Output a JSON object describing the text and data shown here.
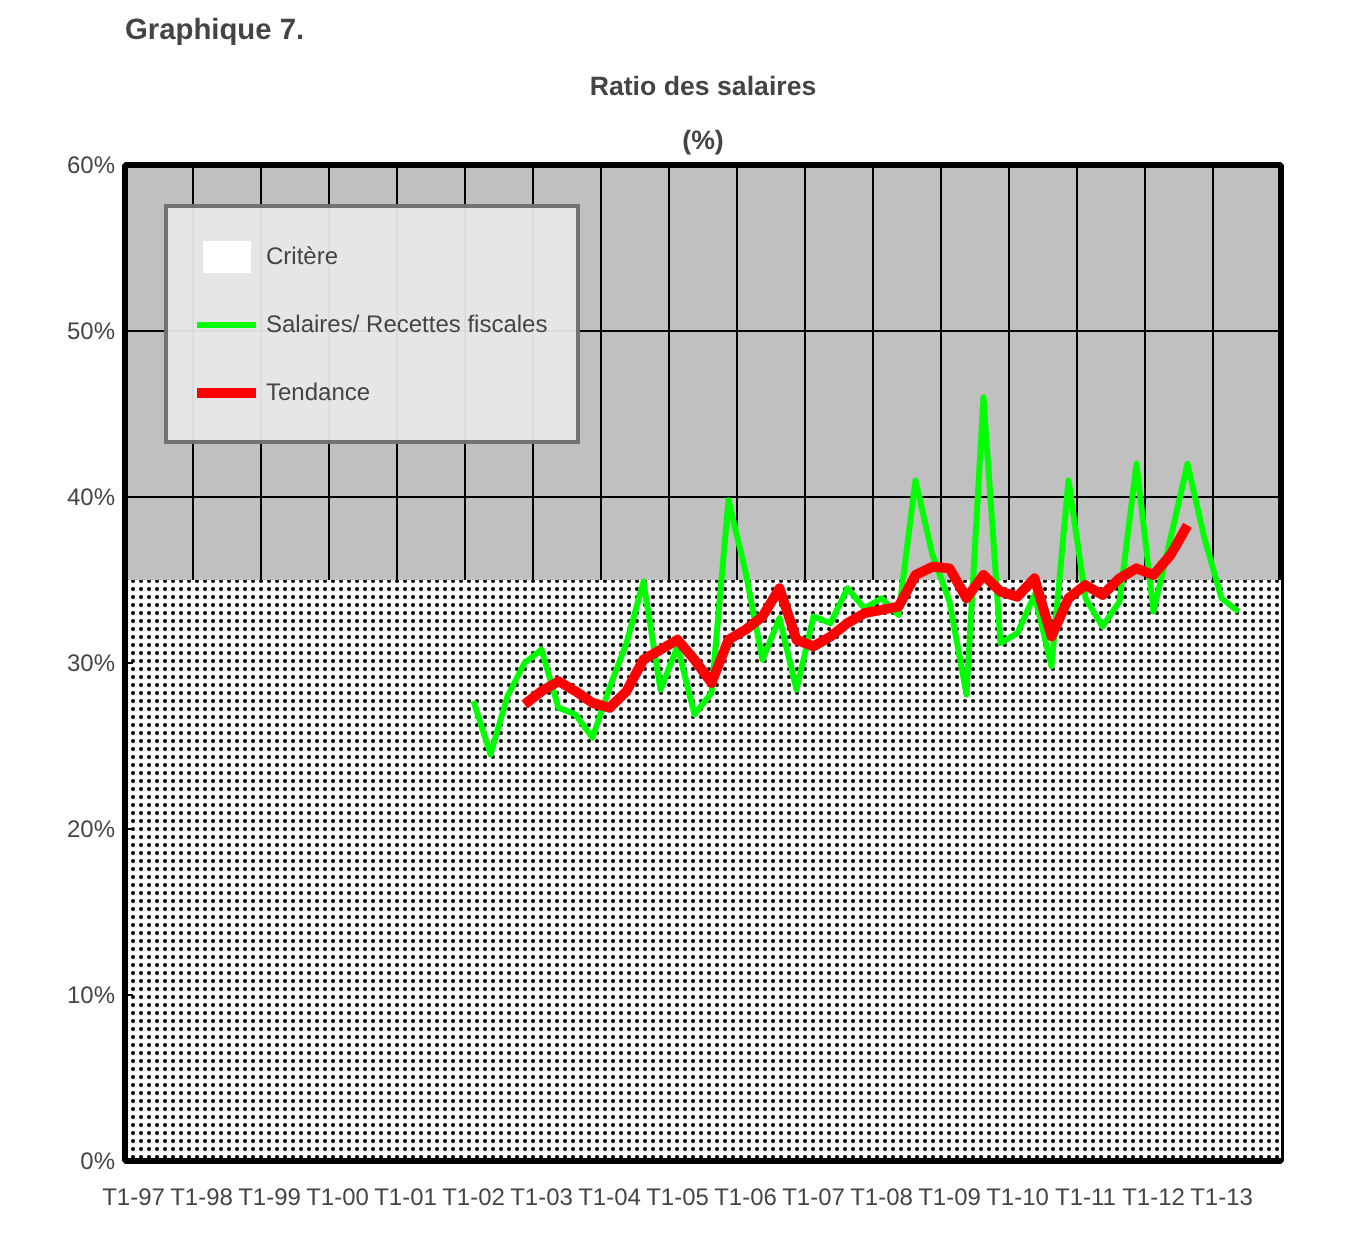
{
  "chart_data": {
    "type": "line",
    "title": "Ratio des salaires",
    "subtitle": "(%)",
    "annotations": [
      "Graphique 7."
    ],
    "categories": [
      "T1-97",
      null,
      null,
      null,
      "T1-98",
      null,
      null,
      null,
      "T1-99",
      null,
      null,
      null,
      "T1-00",
      null,
      null,
      null,
      "T1-01",
      null,
      null,
      null,
      "T1-02",
      null,
      null,
      null,
      "T1-03",
      null,
      null,
      null,
      "T1-04",
      null,
      null,
      null,
      "T1-05",
      null,
      null,
      null,
      "T1-06",
      null,
      null,
      null,
      "T1-07",
      null,
      null,
      null,
      "T1-08",
      null,
      null,
      null,
      "T1-09",
      null,
      null,
      null,
      "T1-10",
      null,
      null,
      null,
      "T1-11",
      null,
      null,
      null,
      "T1-12",
      null,
      null,
      null,
      "T1-13",
      null,
      null,
      null
    ],
    "series": [
      {
        "name": "Salaires/ Recettes fiscales",
        "color": "#00ff00",
        "values": [
          null,
          null,
          null,
          null,
          null,
          null,
          null,
          null,
          null,
          null,
          null,
          null,
          null,
          null,
          null,
          null,
          null,
          null,
          null,
          null,
          27.7,
          24.5,
          28,
          30,
          30.8,
          27.3,
          26.9,
          25.5,
          28.5,
          31.2,
          34.9,
          28.4,
          31,
          26.9,
          28.2,
          39.8,
          35.5,
          30.2,
          32.7,
          28.4,
          32.8,
          32.4,
          34.5,
          33.3,
          33.9,
          32.9,
          41,
          36.5,
          33.7,
          28.1,
          46,
          31.2,
          31.8,
          34.1,
          29.8,
          41,
          33.9,
          32.2,
          33.7,
          42,
          33.1,
          37.5,
          42,
          37.5,
          33.9,
          33.1,
          null,
          null
        ]
      },
      {
        "name": "Tendance",
        "color": "#ff0000",
        "values": [
          null,
          null,
          null,
          null,
          null,
          null,
          null,
          null,
          null,
          null,
          null,
          null,
          null,
          null,
          null,
          null,
          null,
          null,
          null,
          null,
          null,
          null,
          null,
          27.5,
          28.3,
          28.9,
          28.3,
          27.6,
          27.3,
          28.3,
          30.2,
          30.8,
          31.4,
          30.2,
          28.8,
          31.4,
          32,
          32.8,
          34.5,
          31.4,
          31,
          31.6,
          32.4,
          33,
          33.2,
          33.4,
          35.3,
          35.8,
          35.7,
          33.9,
          35.3,
          34.3,
          34,
          35.1,
          31.6,
          33.9,
          34.7,
          34.1,
          35.1,
          35.7,
          35.3,
          36.5,
          38.3,
          null,
          null,
          null,
          null,
          null
        ]
      }
    ],
    "bands": [
      {
        "axis": "y",
        "from": 0,
        "to": 35,
        "label": "Critère",
        "color": "#ffffff"
      }
    ],
    "ylim": [
      0,
      60
    ],
    "yticks": [
      {
        "value": 0,
        "label": "0%"
      },
      {
        "value": 10,
        "label": "10%"
      },
      {
        "value": 20,
        "label": "20%"
      },
      {
        "value": 30,
        "label": "30%"
      },
      {
        "value": 40,
        "label": "40%"
      },
      {
        "value": 50,
        "label": "50%"
      },
      {
        "value": 60,
        "label": "60%"
      }
    ],
    "grid": true,
    "legend": "top left",
    "line_style": "solid",
    "marker": "none"
  }
}
